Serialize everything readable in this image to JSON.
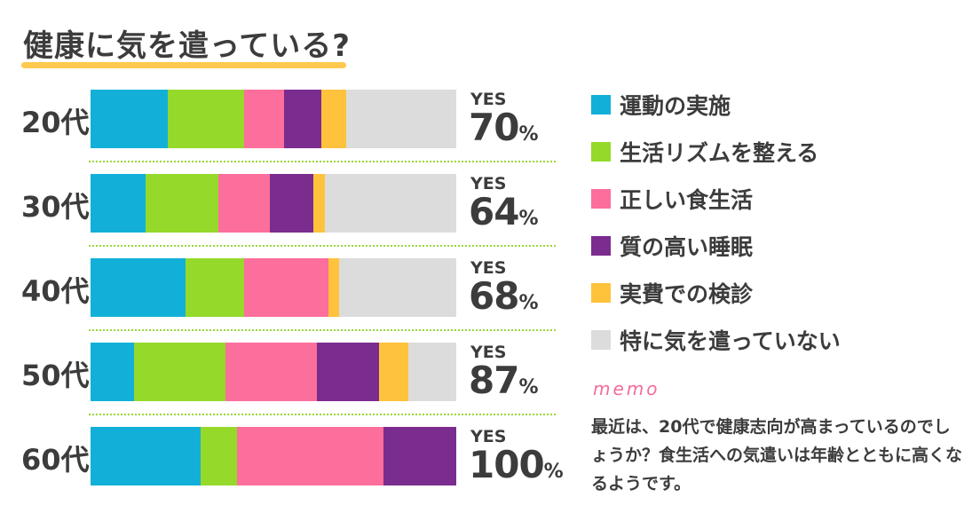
{
  "chart_data": {
    "type": "bar",
    "orientation": "horizontal-stacked",
    "title": "健康に気を遣っている?",
    "categories": [
      "20代",
      "30代",
      "40代",
      "50代",
      "60代"
    ],
    "xlim": [
      0,
      100
    ],
    "series": [
      {
        "name": "運動の実施",
        "color": "#12b0d8",
        "values": [
          21,
          15,
          26,
          12,
          30
        ]
      },
      {
        "name": "生活リズムを整える",
        "color": "#95d92b",
        "values": [
          21,
          20,
          16,
          25,
          10
        ]
      },
      {
        "name": "正しい食生活",
        "color": "#fc6e9b",
        "values": [
          11,
          14,
          23,
          25,
          40
        ]
      },
      {
        "name": "質の高い睡眠",
        "color": "#7b2c8f",
        "values": [
          10,
          12,
          0,
          17,
          20
        ]
      },
      {
        "name": "実費での検診",
        "color": "#ffc23c",
        "values": [
          7,
          3,
          3,
          8,
          0
        ]
      },
      {
        "name": "特に気を遣っていない",
        "color": "#dcdcdc",
        "values": [
          30,
          36,
          32,
          13,
          0
        ]
      }
    ],
    "yes_label": "YES",
    "yes_values": [
      "70",
      "64",
      "68",
      "87",
      "100"
    ],
    "percent_sign": "%",
    "legend_position": "right"
  },
  "memo": {
    "label": "memo",
    "text": "最近は、20代で健康志向が高まっているのでしょうか？食生活への気遣いは年齢とともに高くなるようです。"
  }
}
